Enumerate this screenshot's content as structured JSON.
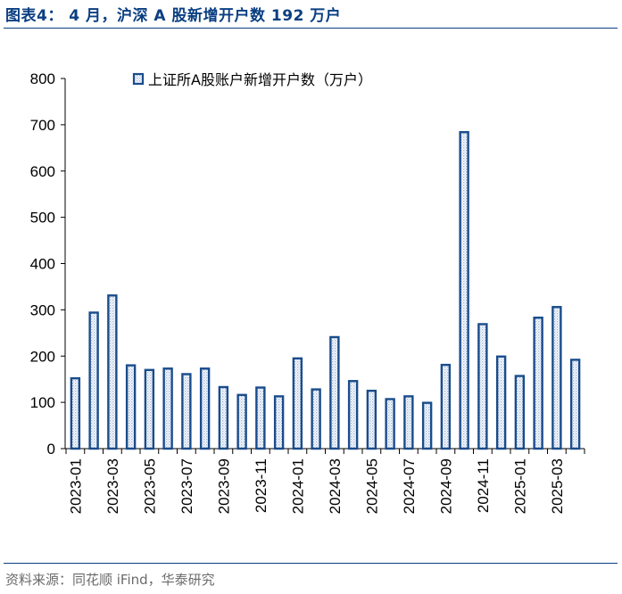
{
  "header": {
    "figure_title": "图表4：  4 月，沪深 A 股新增开户数 192 万户"
  },
  "footer": {
    "source": "资料来源：同花顺 iFind，华泰研究"
  },
  "colors": {
    "accent": "#0b3f82",
    "bar_fill": "#dfe8f5",
    "bar_edge": "#1a4c8c",
    "rule": "#0b3f82",
    "source_text": "#6b6b6b"
  },
  "chart_data": {
    "type": "bar",
    "title": "",
    "xlabel": "",
    "ylabel": "",
    "ylim": [
      0,
      800
    ],
    "yticks": [
      0,
      100,
      200,
      300,
      400,
      500,
      600,
      700,
      800
    ],
    "grid": false,
    "legend_position": "top",
    "categories": [
      "2023-01",
      "2023-02",
      "2023-03",
      "2023-04",
      "2023-05",
      "2023-06",
      "2023-07",
      "2023-08",
      "2023-09",
      "2023-10",
      "2023-11",
      "2023-12",
      "2024-01",
      "2024-02",
      "2024-03",
      "2024-04",
      "2024-05",
      "2024-06",
      "2024-07",
      "2024-08",
      "2024-09",
      "2024-10",
      "2024-11",
      "2024-12",
      "2025-01",
      "2025-02",
      "2025-03",
      "2025-04"
    ],
    "tick_labels": [
      "2023-01",
      "2023-03",
      "2023-05",
      "2023-07",
      "2023-09",
      "2023-11",
      "2024-01",
      "2024-03",
      "2024-05",
      "2024-07",
      "2024-09",
      "2024-11",
      "2025-01",
      "2025-03"
    ],
    "series": [
      {
        "name": "上证所A股账户新增开户数（万户）",
        "values": [
          152,
          294,
          331,
          180,
          170,
          173,
          161,
          173,
          133,
          116,
          132,
          113,
          195,
          128,
          241,
          146,
          125,
          107,
          113,
          99,
          181,
          684,
          269,
          199,
          157,
          283,
          306,
          192
        ]
      }
    ]
  }
}
